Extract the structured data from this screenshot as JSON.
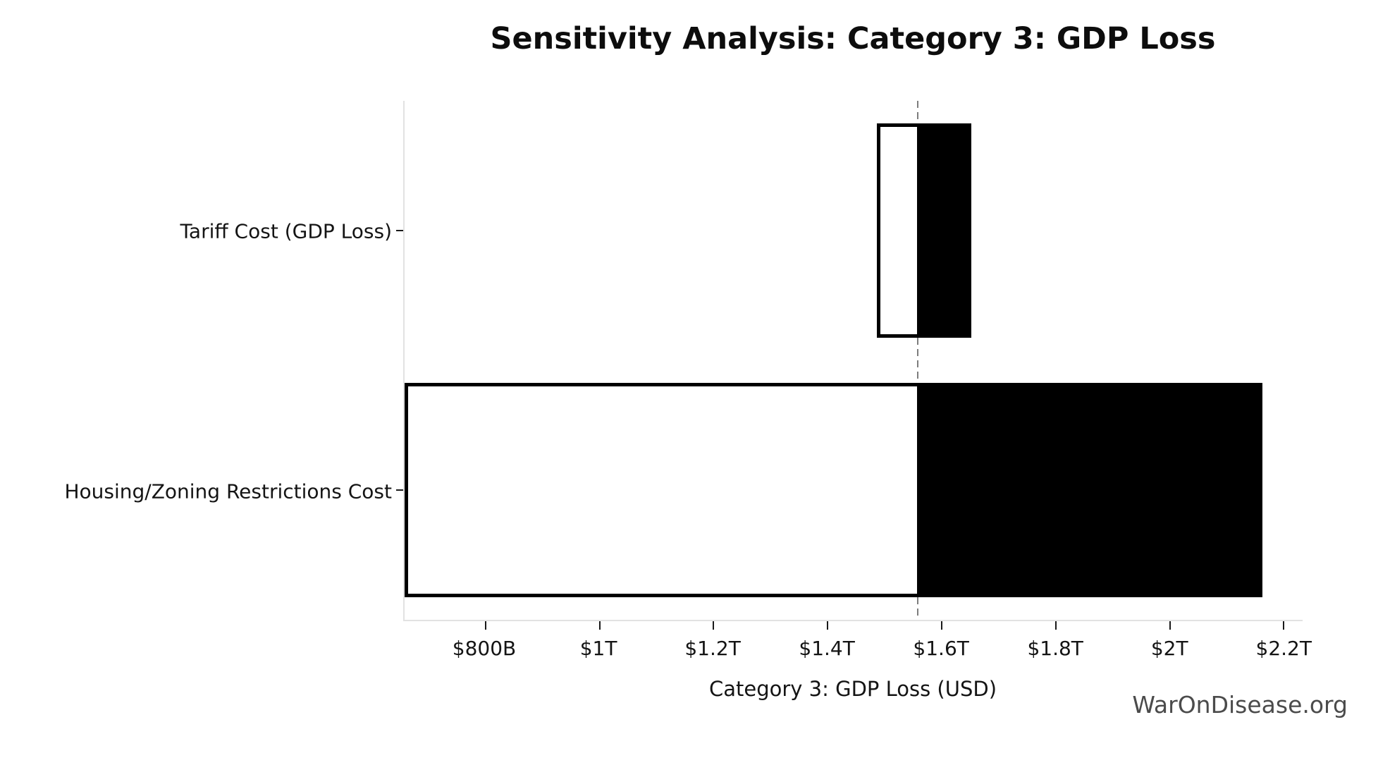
{
  "title": "Sensitivity Analysis: Category 3: GDP Loss",
  "watermark": "WarOnDisease.org",
  "chart_data": {
    "type": "bar",
    "variant": "horizontal-tornado",
    "title": "Sensitivity Analysis: Category 3: GDP Loss",
    "xlabel": "Category 3: GDP Loss (USD)",
    "ylabel": "",
    "legend": "none",
    "grid": "off",
    "axis_range_usd_billions": {
      "min": 658,
      "max": 2233
    },
    "baseline_usd_billions": 1557,
    "baseline_line": {
      "style": "dashed",
      "color": "#7d7d7d"
    },
    "x_ticks": [
      {
        "value_usd_billions": 800,
        "label": "$800B"
      },
      {
        "value_usd_billions": 1000,
        "label": "$1T"
      },
      {
        "value_usd_billions": 1200,
        "label": "$1.2T"
      },
      {
        "value_usd_billions": 1400,
        "label": "$1.4T"
      },
      {
        "value_usd_billions": 1600,
        "label": "$1.6T"
      },
      {
        "value_usd_billions": 1800,
        "label": "$1.8T"
      },
      {
        "value_usd_billions": 2000,
        "label": "$2T"
      },
      {
        "value_usd_billions": 2200,
        "label": "$2.2T"
      }
    ],
    "rows": [
      {
        "label": "Tariff Cost (GDP Loss)",
        "low_usd_billions": 1486,
        "high_usd_billions": 1652
      },
      {
        "label": "Housing/Zoning Restrictions Cost",
        "low_usd_billions": 658,
        "high_usd_billions": 2162
      }
    ],
    "bar_colors": {
      "below_baseline_fill": "#ffffff",
      "above_baseline_fill": "#000000",
      "edge": "#000000"
    }
  }
}
